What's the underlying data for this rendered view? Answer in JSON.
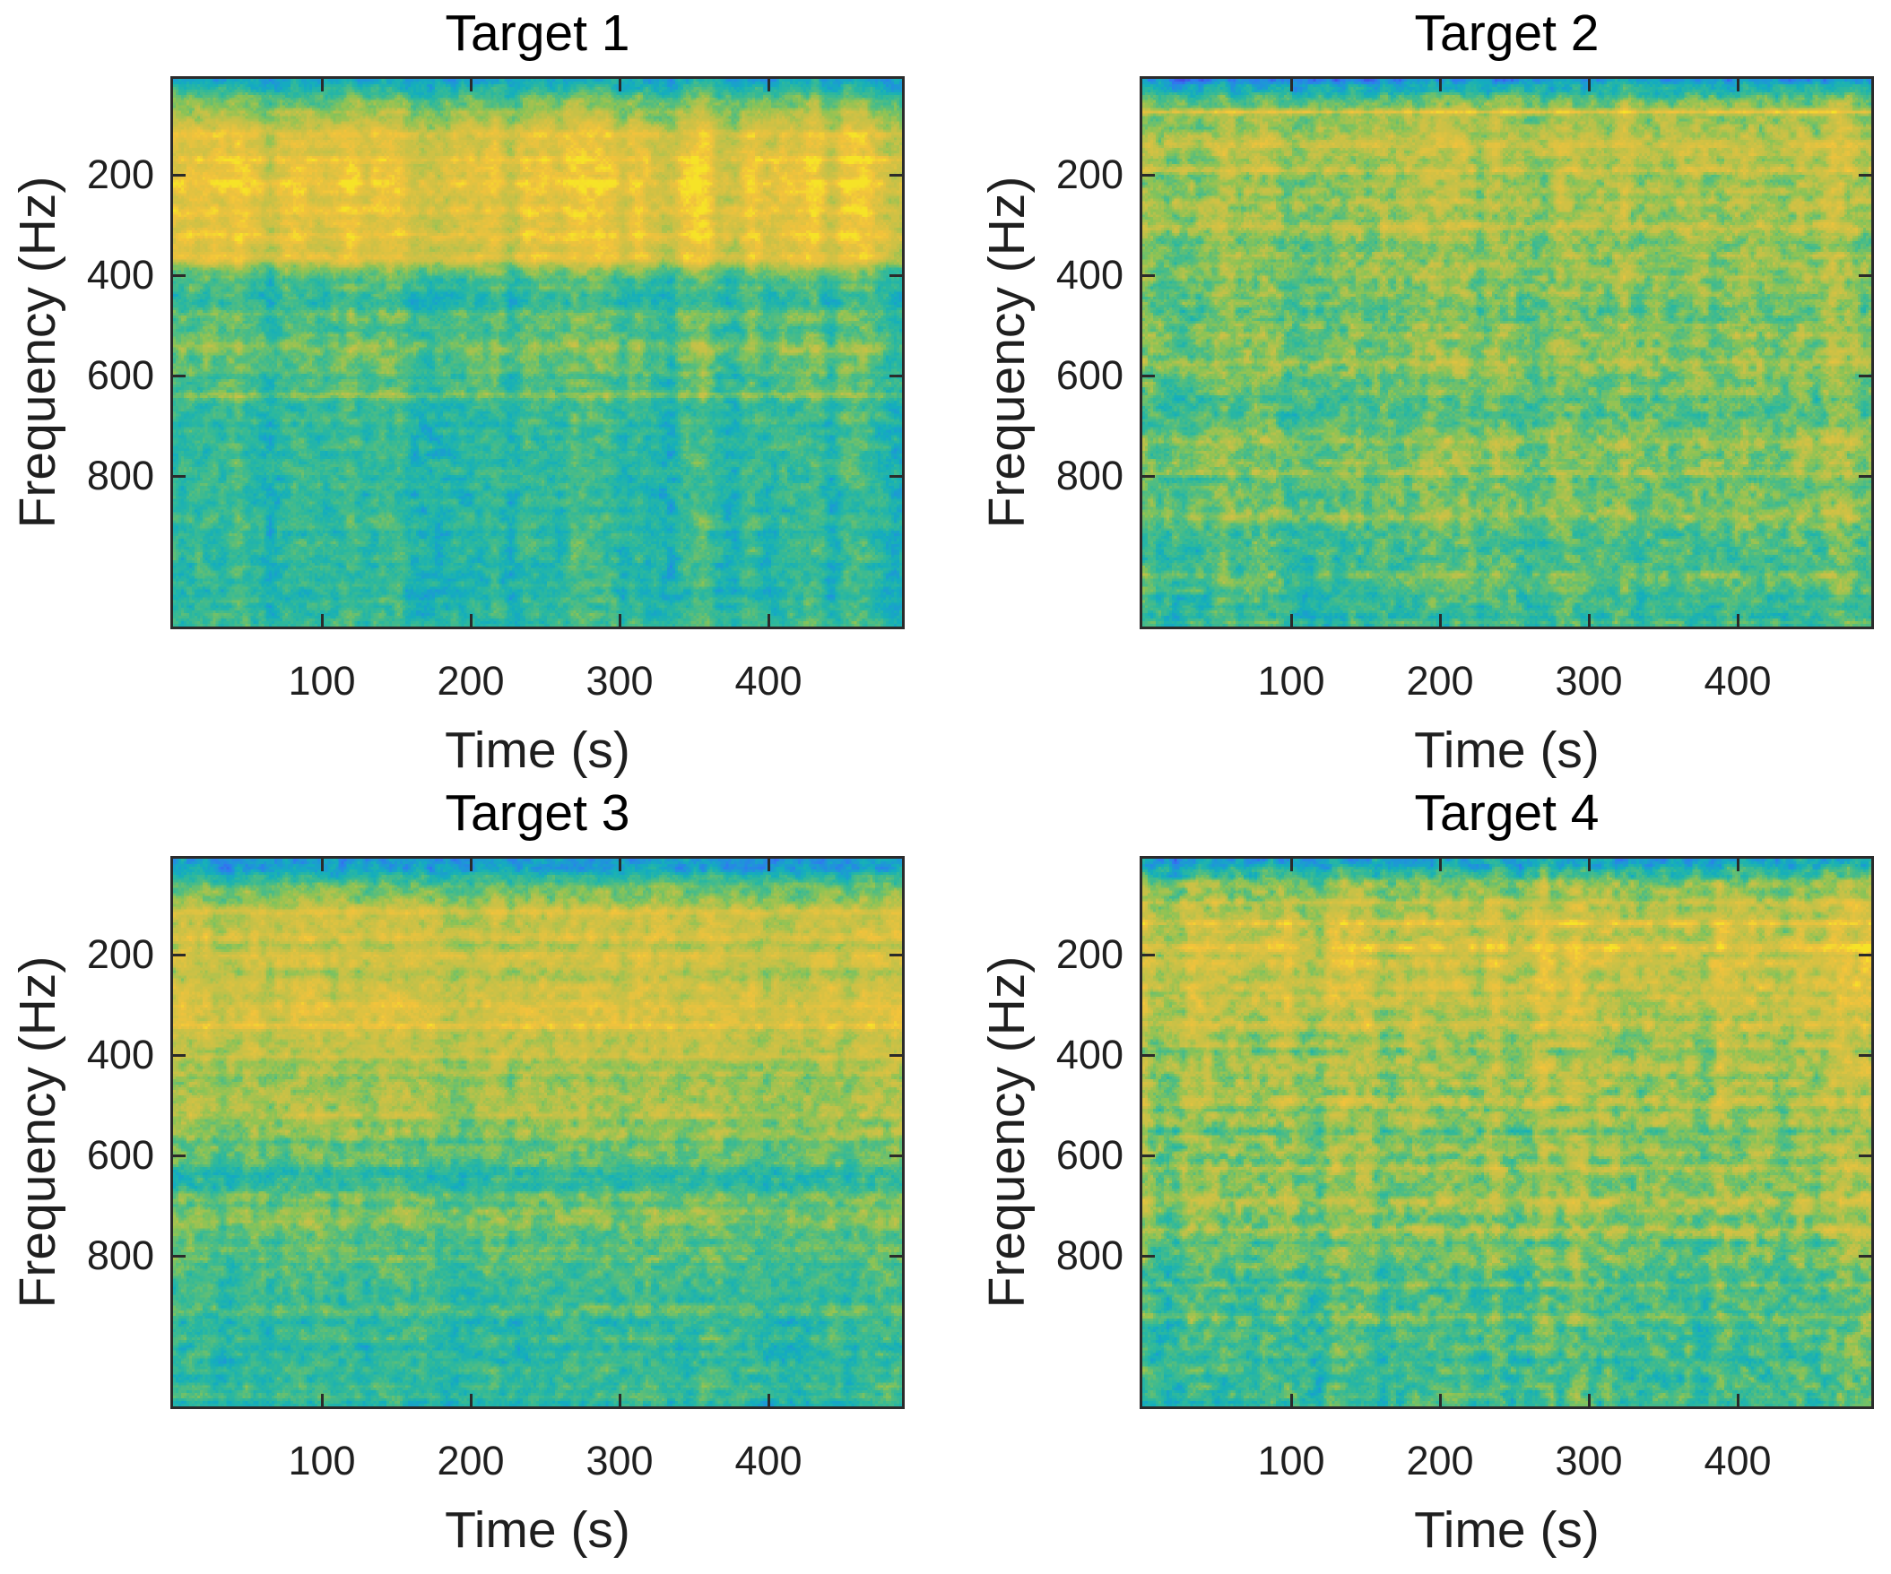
{
  "figure": {
    "background": "#ffffff",
    "axis_color": "#2b2b2b",
    "text_color": "#1f1f1f",
    "title_color": "#000000",
    "colormap_stops": [
      [
        0.0,
        "#3e26a8"
      ],
      [
        0.1,
        "#4646e0"
      ],
      [
        0.2,
        "#2f7af0"
      ],
      [
        0.28,
        "#1e96d8"
      ],
      [
        0.36,
        "#14aebc"
      ],
      [
        0.44,
        "#2cb89e"
      ],
      [
        0.52,
        "#52bd80"
      ],
      [
        0.6,
        "#8ac356"
      ],
      [
        0.7,
        "#c2c148"
      ],
      [
        0.8,
        "#e4bc3e],"
      ],
      [
        0.88,
        "#f2c23c"
      ],
      [
        1.0,
        "#f8ef20"
      ]
    ]
  },
  "chart_data": {
    "type": "heatmap",
    "subtype": "spectrogram-grid",
    "xlabel": "Time (s)",
    "ylabel": "Frequency (Hz)",
    "xticks": [
      100,
      200,
      300,
      400
    ],
    "yticks": [
      200,
      400,
      600,
      800
    ],
    "xlim": [
      0,
      490
    ],
    "ylim": [
      10,
      1100
    ],
    "y_axis_direction": "increasing-downward",
    "colormap": "parula-like (blue→teal→green→yellow)",
    "value_scale": "relative spectral intensity 0–1",
    "legend": "none",
    "grid": false,
    "panels": [
      {
        "title": "Target 1",
        "description": "Strong yellow low-frequency band (~50–330 Hz) with vertical time striping, sharp drop to teal background; thin bright tonal line near 590 Hz.",
        "seed": 11,
        "stripe": 0.11,
        "blob": 0.085,
        "row": 0.03,
        "fine": 0.035,
        "xgrad": 0,
        "profile": [
          [
            0,
            0.34
          ],
          [
            0.008,
            0.38
          ],
          [
            0.03,
            0.52
          ],
          [
            0.06,
            0.66
          ],
          [
            0.1,
            0.76
          ],
          [
            0.14,
            0.81
          ],
          [
            0.2,
            0.83
          ],
          [
            0.26,
            0.81
          ],
          [
            0.3,
            0.78
          ],
          [
            0.33,
            0.72
          ],
          [
            0.345,
            0.62
          ],
          [
            0.365,
            0.5
          ],
          [
            0.42,
            0.48
          ],
          [
            0.47,
            0.51
          ],
          [
            0.51,
            0.52
          ],
          [
            0.55,
            0.49
          ],
          [
            0.6,
            0.46
          ],
          [
            0.68,
            0.45
          ],
          [
            0.8,
            0.44
          ],
          [
            1,
            0.435
          ]
        ],
        "hlines": [
          [
            0.1,
            0.05,
            0.006
          ],
          [
            0.145,
            0.06,
            0.005
          ],
          [
            0.19,
            0.07,
            0.006
          ],
          [
            0.24,
            0.05,
            0.005
          ],
          [
            0.285,
            0.06,
            0.005
          ],
          [
            0.325,
            0.09,
            0.007
          ],
          [
            0.4,
            -0.04,
            0.012
          ],
          [
            0.43,
            0.05,
            0.01
          ],
          [
            0.49,
            0.06,
            0.008
          ],
          [
            0.535,
            0.04,
            0.005
          ],
          [
            0.578,
            0.1,
            0.004
          ],
          [
            0.64,
            -0.03,
            0.012
          ]
        ]
      },
      {
        "title": "Target 2",
        "description": "Broad yellow-green energy over most of band with many fine horizontal tonal lines; bright narrow line near 70 Hz; mottled teal patches below 500 Hz.",
        "seed": 22,
        "stripe": 0.07,
        "blob": 0.105,
        "row": 0.045,
        "fine": 0.04,
        "xgrad": 0.035,
        "profile": [
          [
            0,
            0.3
          ],
          [
            0.01,
            0.36
          ],
          [
            0.03,
            0.52
          ],
          [
            0.05,
            0.62
          ],
          [
            0.08,
            0.68
          ],
          [
            0.13,
            0.7
          ],
          [
            0.19,
            0.68
          ],
          [
            0.25,
            0.67
          ],
          [
            0.31,
            0.64
          ],
          [
            0.37,
            0.6
          ],
          [
            0.44,
            0.59
          ],
          [
            0.5,
            0.61
          ],
          [
            0.56,
            0.58
          ],
          [
            0.62,
            0.56
          ],
          [
            0.68,
            0.58
          ],
          [
            0.74,
            0.57
          ],
          [
            0.8,
            0.55
          ],
          [
            0.87,
            0.52
          ],
          [
            0.93,
            0.5
          ],
          [
            1,
            0.47
          ]
        ],
        "hlines": [
          [
            0.058,
            0.18,
            0.003
          ],
          [
            0.12,
            0.07,
            0.005
          ],
          [
            0.165,
            0.06,
            0.004
          ],
          [
            0.21,
            -0.05,
            0.006
          ],
          [
            0.27,
            0.07,
            0.005
          ],
          [
            0.3,
            -0.05,
            0.005
          ],
          [
            0.35,
            0.05,
            0.006
          ],
          [
            0.42,
            -0.04,
            0.008
          ],
          [
            0.52,
            0.08,
            0.01
          ],
          [
            0.585,
            -0.06,
            0.007
          ],
          [
            0.66,
            0.06,
            0.008
          ],
          [
            0.72,
            0.07,
            0.006
          ],
          [
            0.8,
            0.08,
            0.009
          ],
          [
            0.86,
            -0.05,
            0.006
          ],
          [
            0.91,
            0.05,
            0.006
          ]
        ]
      },
      {
        "title": "Target 3",
        "description": "Yellow-green upper band to ~450 Hz with numerous thin horizontal tonal lines; teal dip near 550–620 Hz; teal background below 700 Hz.",
        "seed": 33,
        "stripe": 0.05,
        "blob": 0.09,
        "row": 0.045,
        "fine": 0.035,
        "xgrad": 0,
        "profile": [
          [
            0,
            0.3
          ],
          [
            0.015,
            0.33
          ],
          [
            0.04,
            0.5
          ],
          [
            0.07,
            0.62
          ],
          [
            0.1,
            0.68
          ],
          [
            0.15,
            0.7
          ],
          [
            0.22,
            0.71
          ],
          [
            0.28,
            0.73
          ],
          [
            0.33,
            0.72
          ],
          [
            0.38,
            0.64
          ],
          [
            0.44,
            0.62
          ],
          [
            0.5,
            0.6
          ],
          [
            0.55,
            0.52
          ],
          [
            0.59,
            0.48
          ],
          [
            0.63,
            0.53
          ],
          [
            0.66,
            0.58
          ],
          [
            0.7,
            0.52
          ],
          [
            0.76,
            0.48
          ],
          [
            0.83,
            0.46
          ],
          [
            0.92,
            0.44
          ],
          [
            1,
            0.44
          ]
        ],
        "hlines": [
          [
            0.095,
            0.1,
            0.004
          ],
          [
            0.14,
            0.06,
            0.004
          ],
          [
            0.175,
            0.07,
            0.004
          ],
          [
            0.225,
            0.06,
            0.004
          ],
          [
            0.27,
            0.08,
            0.005
          ],
          [
            0.305,
            0.09,
            0.005
          ],
          [
            0.36,
            0.05,
            0.004
          ],
          [
            0.43,
            0.06,
            0.005
          ],
          [
            0.47,
            0.05,
            0.004
          ],
          [
            0.525,
            -0.05,
            0.006
          ],
          [
            0.58,
            -0.06,
            0.008
          ],
          [
            0.645,
            0.07,
            0.006
          ],
          [
            0.7,
            -0.04,
            0.006
          ],
          [
            0.83,
            0.04,
            0.006
          ],
          [
            0.955,
            0.04,
            0.004
          ]
        ]
      },
      {
        "title": "Target 4",
        "description": "Yellow-dominated upper half with fine horizontal striping and speckled teal; alternating yellow/teal rows mid-band; teal lower third; strong grain.",
        "seed": 44,
        "stripe": 0.08,
        "blob": 0.11,
        "row": 0.05,
        "fine": 0.04,
        "xgrad": 0.02,
        "profile": [
          [
            0,
            0.3
          ],
          [
            0.012,
            0.36
          ],
          [
            0.04,
            0.58
          ],
          [
            0.08,
            0.7
          ],
          [
            0.13,
            0.74
          ],
          [
            0.19,
            0.75
          ],
          [
            0.25,
            0.73
          ],
          [
            0.31,
            0.69
          ],
          [
            0.37,
            0.66
          ],
          [
            0.43,
            0.64
          ],
          [
            0.49,
            0.62
          ],
          [
            0.55,
            0.61
          ],
          [
            0.6,
            0.63
          ],
          [
            0.66,
            0.58
          ],
          [
            0.72,
            0.54
          ],
          [
            0.78,
            0.52
          ],
          [
            0.85,
            0.5
          ],
          [
            0.93,
            0.48
          ],
          [
            1,
            0.46
          ]
        ],
        "hlines": [
          [
            0.115,
            0.08,
            0.004
          ],
          [
            0.16,
            0.07,
            0.004
          ],
          [
            0.215,
            -0.05,
            0.005
          ],
          [
            0.3,
            0.06,
            0.005
          ],
          [
            0.35,
            -0.06,
            0.006
          ],
          [
            0.44,
            0.05,
            0.005
          ],
          [
            0.5,
            -0.05,
            0.006
          ],
          [
            0.565,
            0.07,
            0.005
          ],
          [
            0.625,
            0.06,
            0.005
          ],
          [
            0.68,
            0.1,
            0.005
          ],
          [
            0.76,
            -0.04,
            0.006
          ],
          [
            0.84,
            0.05,
            0.008
          ]
        ]
      }
    ]
  }
}
